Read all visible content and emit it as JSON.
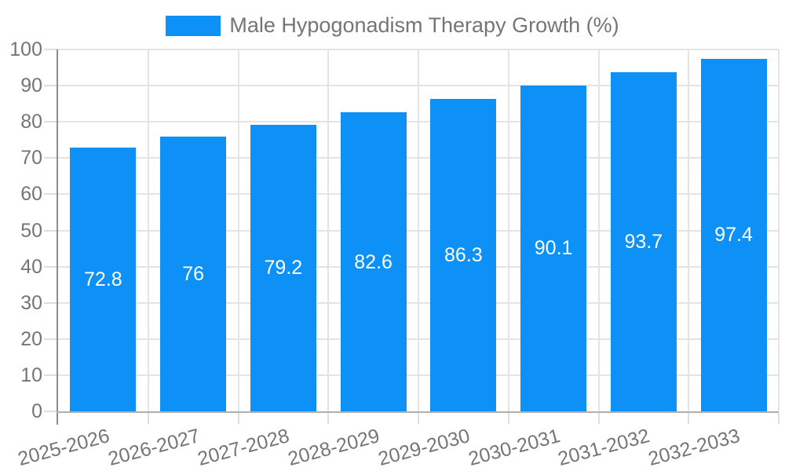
{
  "chart_data": {
    "type": "bar",
    "title": "Male Hypogonadism Therapy Growth (%)",
    "legend_position": "top",
    "categories": [
      "2025-2026",
      "2026-2027",
      "2027-2028",
      "2028-2029",
      "2029-2030",
      "2030-2031",
      "2031-2032",
      "2032-2033"
    ],
    "series": [
      {
        "name": "Male Hypogonadism Therapy Growth (%)",
        "values": [
          72.8,
          76,
          79.2,
          82.6,
          86.3,
          90.1,
          93.7,
          97.4
        ]
      }
    ],
    "value_labels": [
      "72.8",
      "76",
      "79.2",
      "82.6",
      "86.3",
      "90.1",
      "93.7",
      "97.4"
    ],
    "xlabel": "",
    "ylabel": "",
    "ylim": [
      0,
      100
    ],
    "yticks": [
      0,
      10,
      20,
      30,
      40,
      50,
      60,
      70,
      80,
      90,
      100
    ],
    "grid": "horizontal and vertical light gridlines"
  },
  "colors": {
    "bar": "#0D91F7",
    "grid": "#e4e4e4",
    "tick": "#dedede",
    "y_axis": "#8c8c8c",
    "x_axis": "#b0b0b0",
    "label_text": "#757575",
    "value_text": "#ffffff",
    "background": "#ffffff"
  }
}
